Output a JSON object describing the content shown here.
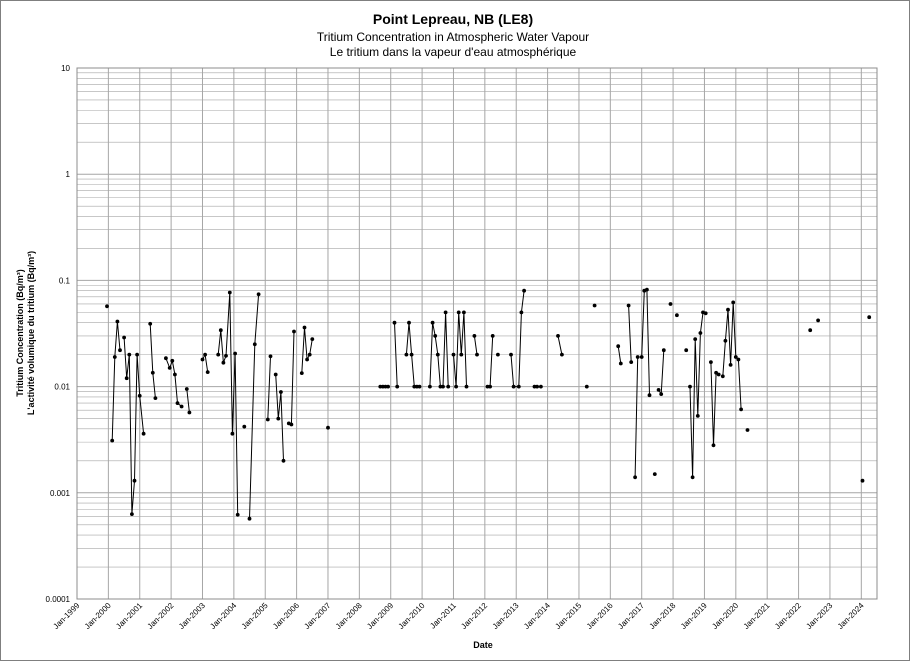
{
  "chart_data": {
    "type": "line",
    "title": "Point Lepreau, NB (LE8)",
    "subtitles": [
      "Tritium Concentration in Atmospheric Water Vapour",
      "Le tritium dans la vapeur d'eau atmosphérique"
    ],
    "xlabel": "Date",
    "ylabel": [
      "Tritium Concentration (Bq/m³)",
      "L'activité volumique du tritium (Bq/m³)"
    ],
    "yscale": "log",
    "ylim": [
      0.0001,
      10
    ],
    "yticks": [
      "10",
      "1",
      "0.1",
      "0.01",
      "0.001",
      "0.0001"
    ],
    "xlim": [
      "1999-01",
      "2024-07"
    ],
    "xticks": [
      "Jan-1999",
      "Jan-2000",
      "Jan-2001",
      "Jan-2002",
      "Jan-2003",
      "Jan-2004",
      "Jan-2005",
      "Jan-2006",
      "Jan-2007",
      "Jan-2008",
      "Jan-2009",
      "Jan-2010",
      "Jan-2011",
      "Jan-2012",
      "Jan-2013",
      "Jan-2014",
      "Jan-2015",
      "Jan-2016",
      "Jan-2017",
      "Jan-2018",
      "Jan-2019",
      "Jan-2020",
      "Jan-2021",
      "Jan-2022",
      "Jan-2023",
      "Jan-2024"
    ],
    "grid": true,
    "legend": "none",
    "colors": {
      "line": "#000000",
      "marker": "#000000",
      "grid": "#a6a6a6"
    },
    "segments": [
      [
        [
          "1999-12-15",
          0.057
        ]
      ],
      [
        [
          "2000-02-15",
          0.0031
        ],
        [
          "2000-03-15",
          0.019
        ],
        [
          "2000-04-15",
          0.041
        ],
        [
          "2000-05-15",
          0.022
        ]
      ],
      [
        [
          "2000-07-01",
          0.029
        ],
        [
          "2000-08-01",
          0.012
        ],
        [
          "2000-09-01",
          0.02
        ],
        [
          "2000-10-01",
          0.00063
        ],
        [
          "2000-11-01",
          0.0013
        ],
        [
          "2000-12-01",
          0.02
        ],
        [
          "2001-01-01",
          0.0082
        ],
        [
          "2001-02-15",
          0.0036
        ]
      ],
      [
        [
          "2001-05-01",
          0.039
        ],
        [
          "2001-06-01",
          0.0135
        ],
        [
          "2001-07-01",
          0.0078
        ]
      ],
      [
        [
          "2001-11-01",
          0.0185
        ],
        [
          "2001-12-15",
          0.015
        ],
        [
          "2002-01-15",
          0.0175
        ],
        [
          "2002-02-15",
          0.013
        ],
        [
          "2002-03-15",
          0.007
        ],
        [
          "2002-05-01",
          0.0065
        ]
      ],
      [
        [
          "2002-07-01",
          0.0095
        ],
        [
          "2002-08-01",
          0.0057
        ]
      ],
      [
        [
          "2003-01-01",
          0.018
        ],
        [
          "2003-02-01",
          0.02
        ],
        [
          "2003-03-01",
          0.0137
        ]
      ],
      [
        [
          "2003-07-01",
          0.02
        ],
        [
          "2003-08-01",
          0.034
        ],
        [
          "2003-09-01",
          0.0168
        ],
        [
          "2003-10-01",
          0.0195
        ],
        [
          "2003-11-15",
          0.077
        ],
        [
          "2003-12-15",
          0.0036
        ],
        [
          "2004-01-15",
          0.0205
        ],
        [
          "2004-02-15",
          0.00062
        ]
      ],
      [
        [
          "2004-05-01",
          0.0042
        ]
      ],
      [
        [
          "2004-07-01",
          0.00057
        ],
        [
          "2004-09-01",
          0.025
        ],
        [
          "2004-10-15",
          0.074
        ]
      ],
      [
        [
          "2005-02-01",
          0.0049
        ],
        [
          "2005-03-01",
          0.0193
        ]
      ],
      [
        [
          "2005-05-01",
          0.013
        ],
        [
          "2005-06-01",
          0.005
        ],
        [
          "2005-07-01",
          0.0089
        ],
        [
          "2005-08-01",
          0.002
        ]
      ],
      [
        [
          "2005-10-01",
          0.0045
        ],
        [
          "2005-11-01",
          0.0044
        ],
        [
          "2005-12-01",
          0.033
        ]
      ],
      [
        [
          "2006-03-01",
          0.0134
        ],
        [
          "2006-04-01",
          0.036
        ],
        [
          "2006-05-01",
          0.018
        ],
        [
          "2006-06-01",
          0.02
        ],
        [
          "2006-07-01",
          0.028
        ]
      ],
      [
        [
          "2007-01-01",
          0.0041
        ]
      ],
      [
        [
          "2008-09-01",
          0.01
        ],
        [
          "2008-10-01",
          0.01
        ],
        [
          "2008-11-01",
          0.01
        ],
        [
          "2008-12-01",
          0.01
        ]
      ],
      [
        [
          "2009-02-15",
          0.04
        ],
        [
          "2009-03-15",
          0.01
        ]
      ],
      [
        [
          "2009-07-01",
          0.02
        ],
        [
          "2009-08-01",
          0.04
        ],
        [
          "2009-09-01",
          0.02
        ],
        [
          "2009-10-01",
          0.01
        ],
        [
          "2009-11-01",
          0.01
        ],
        [
          "2009-12-01",
          0.01
        ]
      ],
      [
        [
          "2010-04-01",
          0.01
        ],
        [
          "2010-05-01",
          0.04
        ],
        [
          "2010-06-01",
          0.03
        ],
        [
          "2010-07-01",
          0.02
        ],
        [
          "2010-08-01",
          0.01
        ],
        [
          "2010-09-01",
          0.01
        ],
        [
          "2010-10-01",
          0.05
        ],
        [
          "2010-11-01",
          0.01
        ]
      ],
      [
        [
          "2011-01-01",
          0.02
        ],
        [
          "2011-02-01",
          0.01
        ],
        [
          "2011-03-01",
          0.05
        ],
        [
          "2011-04-01",
          0.02
        ],
        [
          "2011-05-01",
          0.05
        ],
        [
          "2011-06-01",
          0.01
        ]
      ],
      [
        [
          "2011-09-01",
          0.03
        ],
        [
          "2011-10-01",
          0.02
        ]
      ],
      [
        [
          "2012-02-01",
          0.01
        ],
        [
          "2012-03-01",
          0.01
        ],
        [
          "2012-04-01",
          0.03
        ]
      ],
      [
        [
          "2012-06-01",
          0.02
        ]
      ],
      [
        [
          "2012-11-01",
          0.02
        ],
        [
          "2012-12-01",
          0.01
        ],
        [
          "2013-02-01",
          0.01
        ],
        [
          "2013-03-01",
          0.05
        ],
        [
          "2013-04-01",
          0.08
        ]
      ],
      [
        [
          "2013-08-01",
          0.01
        ],
        [
          "2013-09-01",
          0.01
        ],
        [
          "2013-10-15",
          0.01
        ]
      ],
      [
        [
          "2014-05-01",
          0.03
        ],
        [
          "2014-06-15",
          0.02
        ]
      ],
      [
        [
          "2015-04-01",
          0.01
        ]
      ],
      [
        [
          "2015-07-01",
          0.058
        ]
      ],
      [
        [
          "2016-04-01",
          0.024
        ],
        [
          "2016-05-01",
          0.0165
        ]
      ],
      [
        [
          "2016-08-01",
          0.058
        ],
        [
          "2016-09-01",
          0.017
        ]
      ],
      [
        [
          "2016-10-15",
          0.0014
        ],
        [
          "2016-11-15",
          0.019
        ]
      ],
      [
        [
          "2017-01-01",
          0.019
        ],
        [
          "2017-02-01",
          0.08
        ],
        [
          "2017-03-01",
          0.082
        ],
        [
          "2017-04-01",
          0.0083
        ]
      ],
      [
        [
          "2017-06-01",
          0.0015
        ]
      ],
      [
        [
          "2017-07-15",
          0.0093
        ],
        [
          "2017-08-15",
          0.0085
        ],
        [
          "2017-09-15",
          0.022
        ]
      ],
      [
        [
          "2017-12-01",
          0.06
        ]
      ],
      [
        [
          "2018-02-15",
          0.047
        ]
      ],
      [
        [
          "2018-06-01",
          0.022
        ]
      ],
      [
        [
          "2018-07-15",
          0.01
        ],
        [
          "2018-08-15",
          0.0014
        ],
        [
          "2018-09-15",
          0.028
        ],
        [
          "2018-10-15",
          0.0053
        ],
        [
          "2018-11-15",
          0.032
        ],
        [
          "2018-12-15",
          0.05
        ],
        [
          "2019-01-15",
          0.049
        ]
      ],
      [
        [
          "2019-03-15",
          0.017
        ],
        [
          "2019-04-15",
          0.0028
        ],
        [
          "2019-05-15",
          0.0135
        ],
        [
          "2019-06-15",
          0.013
        ]
      ],
      [
        [
          "2019-08-01",
          0.0125
        ],
        [
          "2019-09-01",
          0.027
        ],
        [
          "2019-10-01",
          0.053
        ],
        [
          "2019-11-01",
          0.016
        ],
        [
          "2019-12-01",
          0.062
        ],
        [
          "2020-01-01",
          0.019
        ],
        [
          "2020-02-01",
          0.018
        ],
        [
          "2020-03-01",
          0.0061
        ]
      ],
      [
        [
          "2020-05-15",
          0.0039
        ]
      ],
      [
        [
          "2022-05-15",
          0.034
        ]
      ],
      [
        [
          "2022-08-15",
          0.042
        ]
      ],
      [
        [
          "2024-01-15",
          0.0013
        ]
      ],
      [
        [
          "2024-04-01",
          0.045
        ]
      ]
    ]
  }
}
